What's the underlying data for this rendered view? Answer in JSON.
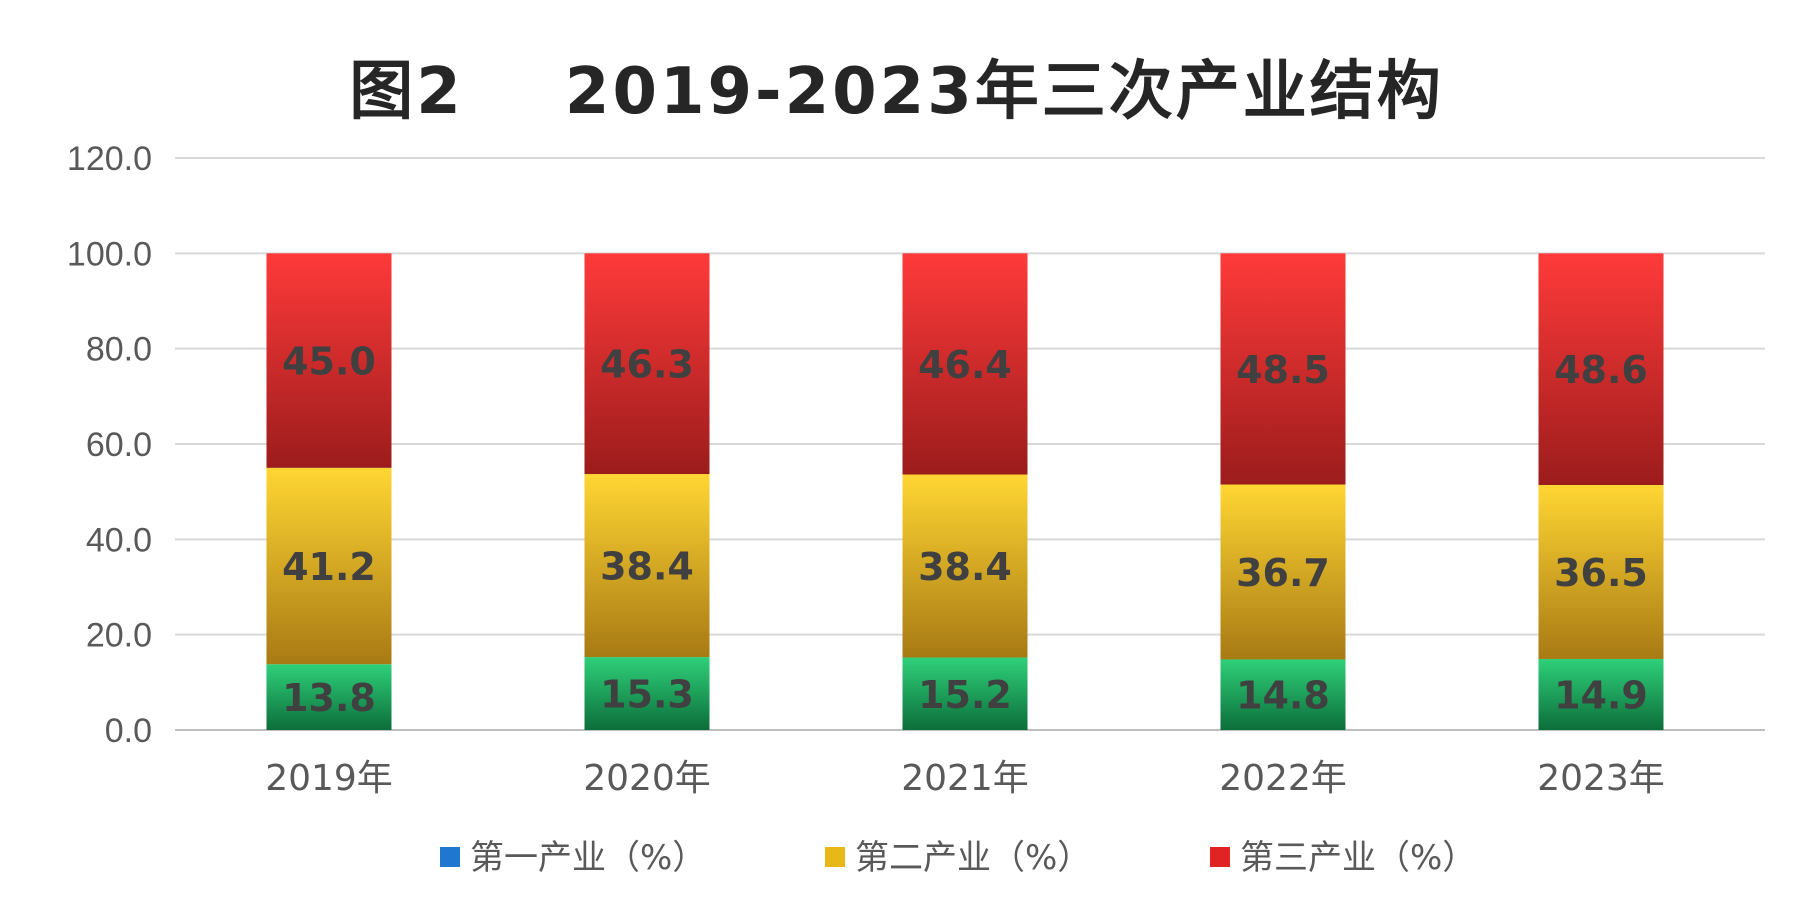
{
  "chart_data": {
    "type": "bar",
    "stacked": true,
    "title": "图2    2019-2023年三次产业结构",
    "categories": [
      "2019年",
      "2020年",
      "2021年",
      "2022年",
      "2023年"
    ],
    "series": [
      {
        "name": "第一产业（%）",
        "values": [
          13.8,
          15.3,
          15.2,
          14.8,
          14.9
        ],
        "color": "#1a9e55",
        "legend_color": "#1f77d0"
      },
      {
        "name": "第二产业（%）",
        "values": [
          41.2,
          38.4,
          38.4,
          36.7,
          36.5
        ],
        "color": "#f5c518",
        "legend_color": "#e8b818"
      },
      {
        "name": "第三产业（%）",
        "values": [
          45.0,
          46.3,
          46.4,
          48.5,
          48.6
        ],
        "color": "#ee2b2b",
        "legend_color": "#e02424"
      }
    ],
    "value_labels": [
      [
        "13.8",
        "15.3",
        "15.2",
        "14.8",
        "14.9"
      ],
      [
        "41.2",
        "38.4",
        "38.4",
        "36.7",
        "36.5"
      ],
      [
        "45.0",
        "46.3",
        "46.4",
        "48.5",
        "48.6"
      ]
    ],
    "ylim": [
      0,
      120
    ],
    "yticks": [
      "0.0",
      "20.0",
      "40.0",
      "60.0",
      "80.0",
      "100.0",
      "120.0"
    ],
    "ytick_values": [
      0,
      20,
      40,
      60,
      80,
      100,
      120
    ],
    "grid": true,
    "legend_position": "bottom"
  }
}
